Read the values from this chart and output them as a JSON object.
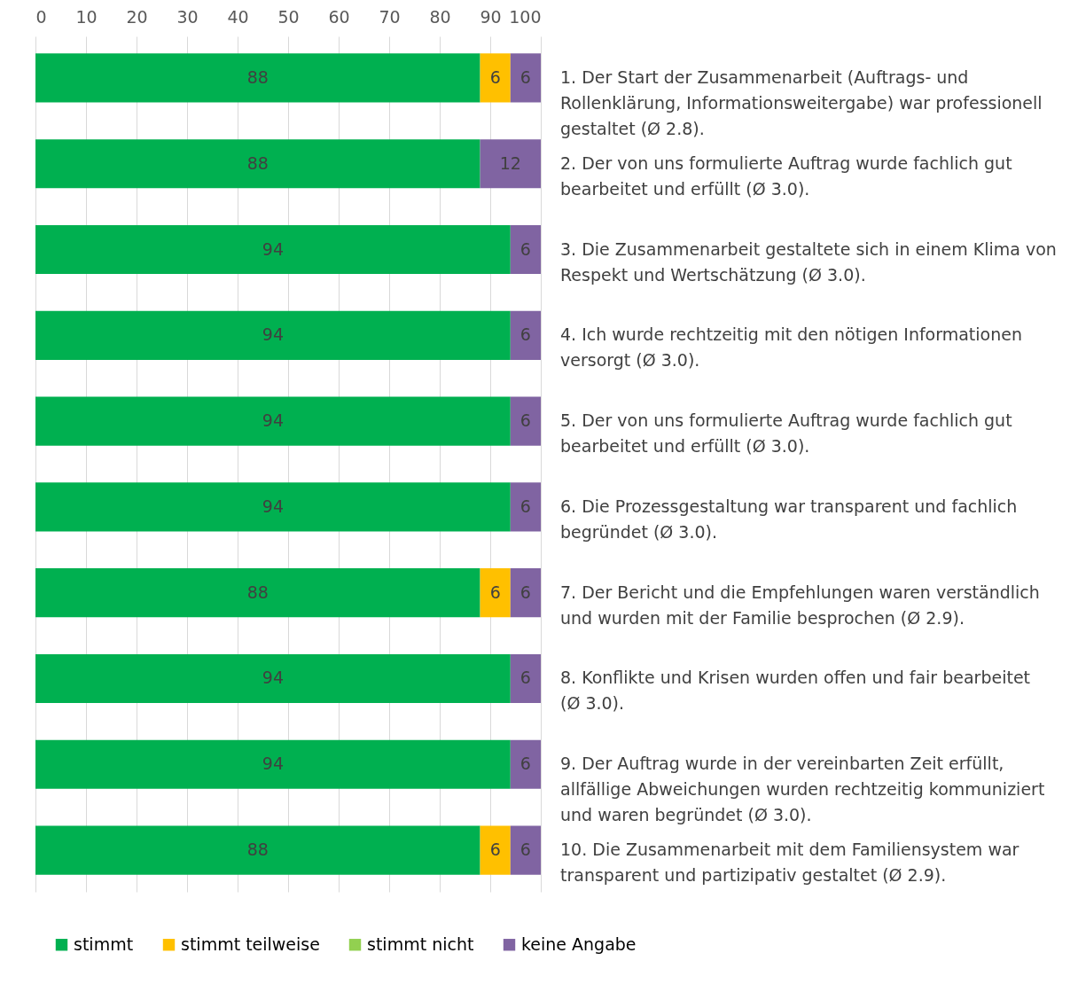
{
  "chart_data": {
    "type": "bar",
    "orientation": "horizontal",
    "stacked": true,
    "data_labels": true,
    "grid": "x",
    "legend": "bottom",
    "categories": [
      "1. Der Start der Zusammenarbeit (Auftrags- und Rollenklärung, Informationsweitergabe) war professionell gestaltet (Ø 2.8).",
      "2. Der von uns formulierte Auftrag wurde fachlich gut bearbeitet und erfüllt (Ø 3.0).",
      "3. Die Zusammenarbeit gestaltete sich in einem Klima von Respekt und Wertschätzung (Ø 3.0).",
      "4. Ich wurde rechtzeitig mit den nötigen Informationen versorgt (Ø 3.0).",
      "5. Der von uns formulierte Auftrag wurde fachlich gut bearbeitet und erfüllt (Ø 3.0).",
      "6. Die Prozessgestaltung war transparent und fachlich begründet (Ø 3.0).",
      "7. Der Bericht und die Empfehlungen waren verständlich und wurden mit der Familie besprochen (Ø 2.9).",
      "8. Konflikte und Krisen wurden offen und fair bearbeitet (Ø 3.0).",
      "9. Der Auftrag wurde in der vereinbarten Zeit erfüllt, allfällige Abweichungen wurden rechtzeitig kommuniziert und waren begründet  (Ø 3.0).",
      "10. Die Zusammenarbeit mit dem Familiensystem war transparent und partizipativ gestaltet (Ø 2.9)."
    ],
    "xlim": [
      0,
      100
    ],
    "xticks": [
      0,
      10,
      20,
      30,
      40,
      50,
      60,
      70,
      80,
      90,
      100
    ],
    "series": [
      {
        "name": "stimmt",
        "color": "#00b050",
        "values": [
          88,
          88,
          94,
          94,
          94,
          94,
          88,
          94,
          94,
          88
        ]
      },
      {
        "name": "stimmt teilweise",
        "color": "#ffc000",
        "values": [
          6,
          null,
          null,
          null,
          null,
          null,
          6,
          null,
          null,
          6
        ]
      },
      {
        "name": "stimmt nicht",
        "color": "#92d050",
        "values": [
          null,
          null,
          null,
          null,
          null,
          null,
          null,
          null,
          null,
          null
        ]
      },
      {
        "name": "keine Angabe",
        "color": "#8064a2",
        "values": [
          6,
          12,
          6,
          6,
          6,
          6,
          6,
          6,
          6,
          6
        ]
      }
    ]
  }
}
